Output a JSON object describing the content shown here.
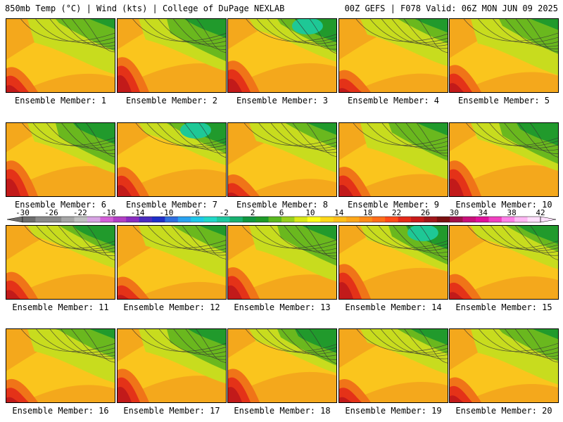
{
  "header": {
    "left_title": "850mb Temp (°C) | Wind (kts) | College of DuPage NEXLAB",
    "right_title": "00Z GEFS | F078 Valid: 06Z MON JUN 09 2025"
  },
  "colorbar": {
    "tick_labels": [
      "-30",
      "-26",
      "-22",
      "-18",
      "-14",
      "-10",
      "-6",
      "-2",
      "2",
      "6",
      "10",
      "14",
      "18",
      "22",
      "26",
      "30",
      "34",
      "38",
      "42"
    ],
    "colors": [
      "#6e6e6e",
      "#8a8a8a",
      "#8a8a8a",
      "#a6a6a6",
      "#c0c0c0",
      "#d8a4e4",
      "#d45fd8",
      "#b23fc4",
      "#8a2cc0",
      "#4a2cc0",
      "#1f2fc8",
      "#2f6fe0",
      "#2aa2f0",
      "#1ec8ea",
      "#22d8c8",
      "#1ec8a0",
      "#18b070",
      "#0f9640",
      "#1e9a28",
      "#5ab820",
      "#98d01e",
      "#d8e818",
      "#ffff1a",
      "#ffd81a",
      "#ffc01a",
      "#ffa81a",
      "#ff8c1a",
      "#ff6e1a",
      "#ff4a1a",
      "#e42a1a",
      "#c81a1a",
      "#a0161a",
      "#7a1010",
      "#a0104a",
      "#c8107a",
      "#e0109a",
      "#f040c0",
      "#ff80e8",
      "#ffb8f4",
      "#ffe0fc"
    ],
    "range": [
      -30,
      42
    ]
  },
  "panels": [
    {
      "label": "Ensemble Member: 1"
    },
    {
      "label": "Ensemble Member: 2"
    },
    {
      "label": "Ensemble Member: 3"
    },
    {
      "label": "Ensemble Member: 4"
    },
    {
      "label": "Ensemble Member: 5"
    },
    {
      "label": "Ensemble Member: 6"
    },
    {
      "label": "Ensemble Member: 7"
    },
    {
      "label": "Ensemble Member: 8"
    },
    {
      "label": "Ensemble Member: 9"
    },
    {
      "label": "Ensemble Member: 10"
    },
    {
      "label": "Ensemble Member: 11"
    },
    {
      "label": "Ensemble Member: 12"
    },
    {
      "label": "Ensemble Member: 13"
    },
    {
      "label": "Ensemble Member: 14"
    },
    {
      "label": "Ensemble Member: 15"
    },
    {
      "label": "Ensemble Member: 16"
    },
    {
      "label": "Ensemble Member: 17"
    },
    {
      "label": "Ensemble Member: 18"
    },
    {
      "label": "Ensemble Member: 19"
    },
    {
      "label": "Ensemble Member: 20"
    }
  ]
}
